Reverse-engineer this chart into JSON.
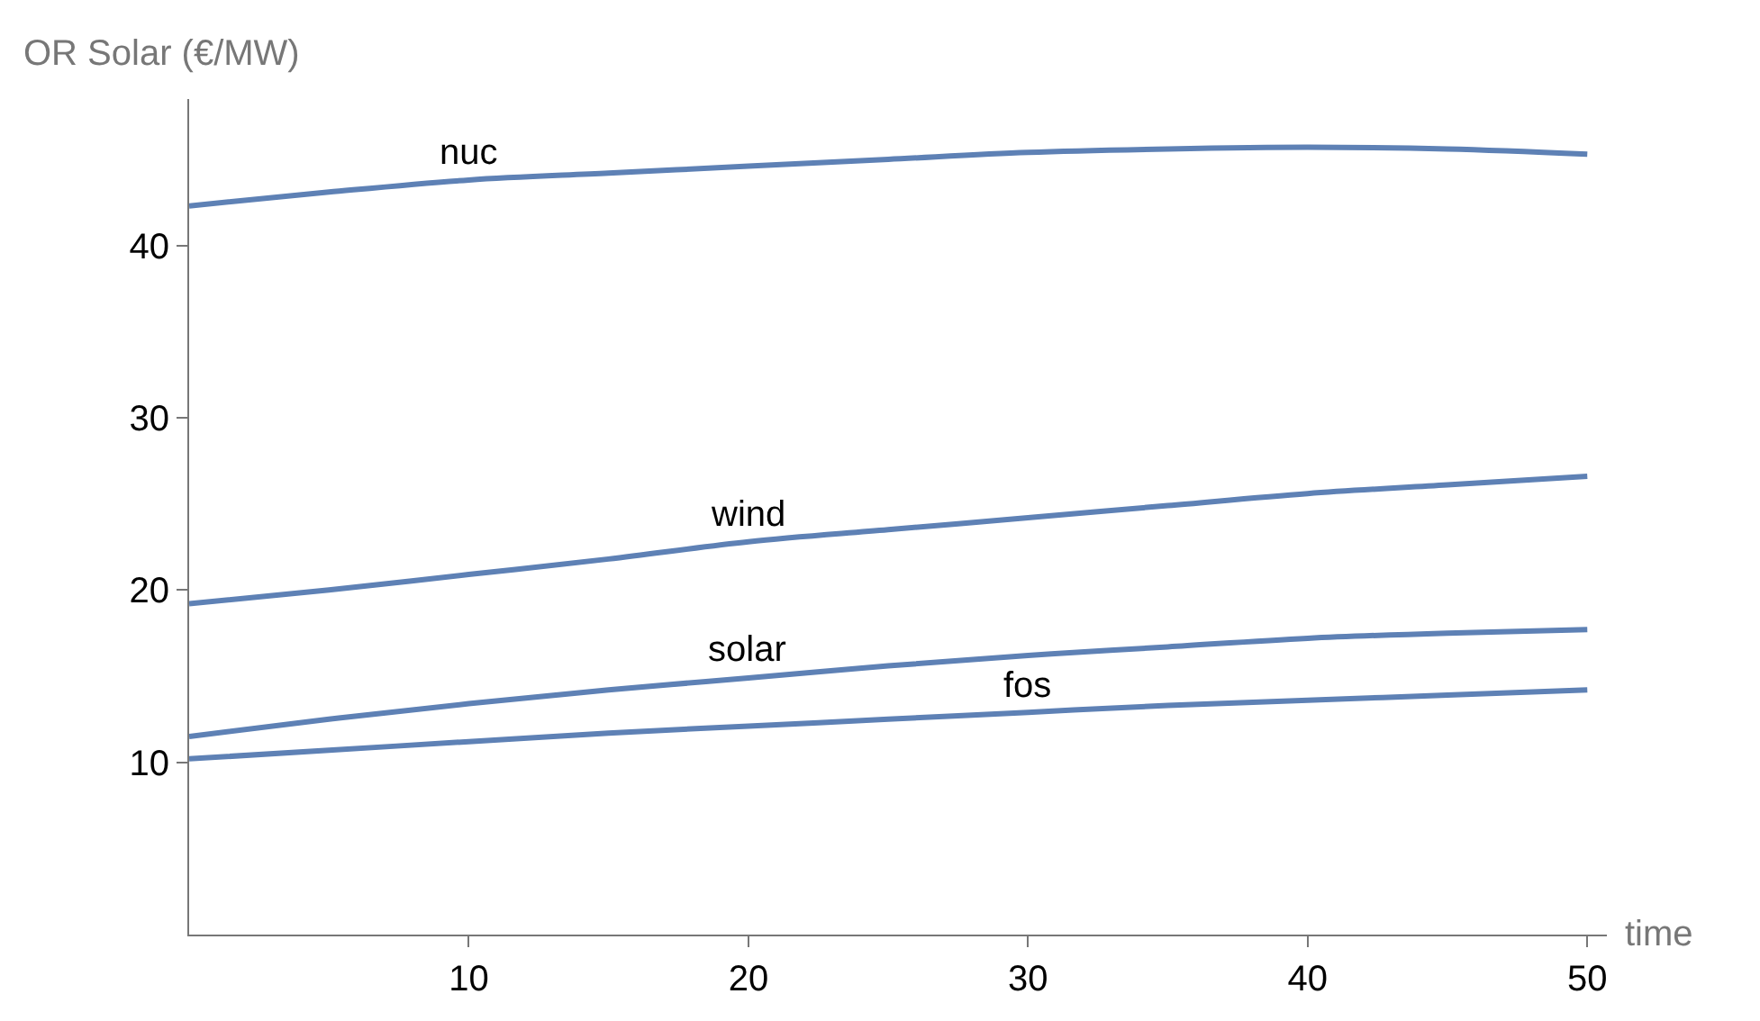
{
  "chart_data": {
    "type": "line",
    "xlabel": "time",
    "ylabel": "OR Solar (€/MW)",
    "x": [
      0,
      5,
      10,
      15,
      20,
      25,
      30,
      35,
      40,
      45,
      50
    ],
    "series": [
      {
        "color": "#5e81b5",
        "values": [
          42.3,
          43.1,
          43.8,
          44.2,
          44.6,
          45.0,
          45.4,
          45.6,
          45.7,
          45.6,
          45.3
        ]
      },
      {
        "color": "#5e81b5",
        "values": [
          19.2,
          20.0,
          20.9,
          21.8,
          22.8,
          23.5,
          24.2,
          24.9,
          25.6,
          26.1,
          26.6
        ]
      },
      {
        "color": "#5e81b5",
        "values": [
          11.5,
          12.5,
          13.4,
          14.2,
          14.9,
          15.6,
          16.2,
          16.7,
          17.2,
          17.5,
          17.7
        ]
      },
      {
        "color": "#5e81b5",
        "values": [
          10.2,
          10.7,
          11.2,
          11.7,
          12.1,
          12.5,
          12.9,
          13.3,
          13.6,
          13.9,
          14.2
        ]
      }
    ],
    "annotations": [
      {
        "text": "nuc",
        "x": 10,
        "y": 43.8
      },
      {
        "text": "wind",
        "x": 20,
        "y": 22.8
      },
      {
        "text": "solar",
        "x": 20,
        "y": 14.9
      },
      {
        "text": "fos",
        "x": 30,
        "y": 12.9
      }
    ],
    "xlim": [
      0,
      50.7
    ],
    "ylim": [
      0,
      48.5
    ],
    "xticks": [
      10,
      20,
      30,
      40,
      50
    ],
    "yticks": [
      10,
      20,
      30,
      40
    ],
    "marker": "none",
    "line_style": "solid"
  }
}
